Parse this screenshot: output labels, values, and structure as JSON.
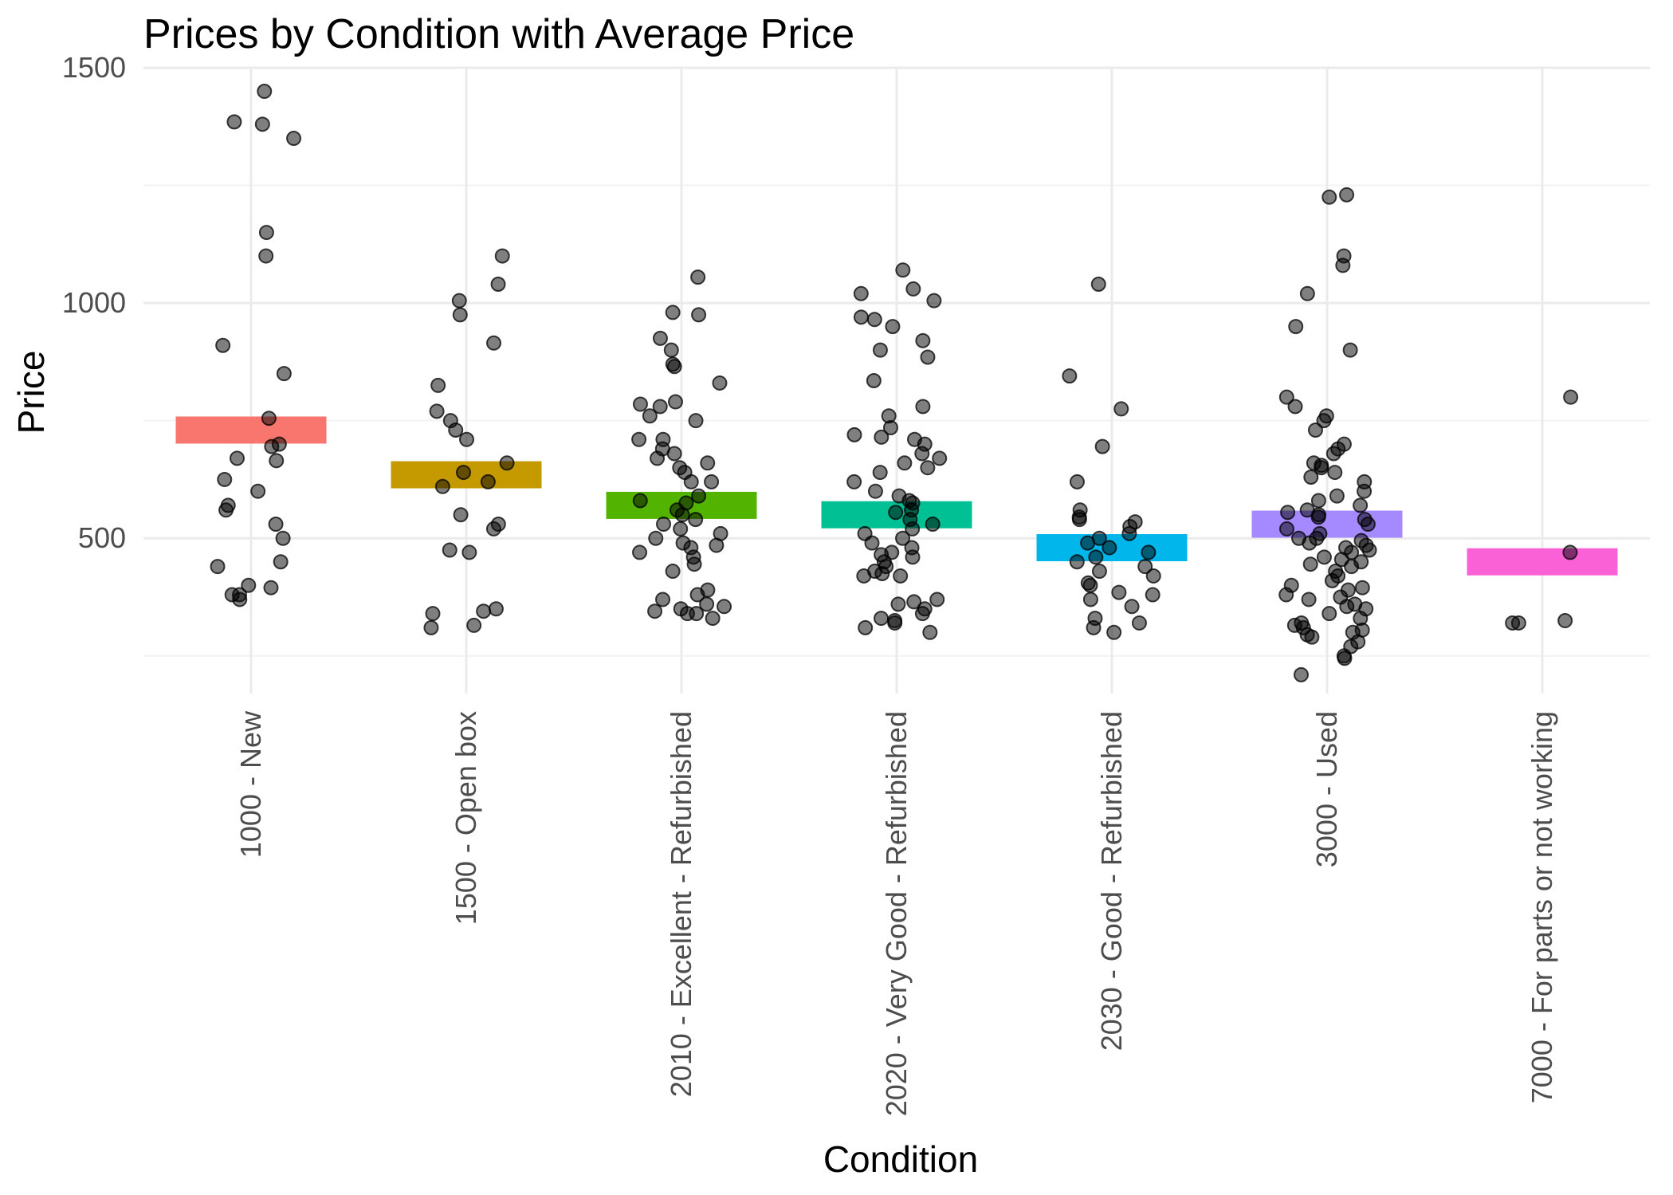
{
  "chart_data": {
    "type": "scatter",
    "title": "Prices by Condition with Average Price",
    "xlabel": "Condition",
    "ylabel": "Price",
    "ylim": [
      170,
      1500
    ],
    "y_ticks": [
      500,
      1000,
      1500
    ],
    "y_tick_labels": [
      "500",
      "1000",
      "1500"
    ],
    "grid": true,
    "legend": "none",
    "categories": [
      "1000 - New",
      "1500 - Open box",
      "2010 - Excellent - Refurbished",
      "2020 - Very Good - Refurbished",
      "2030 - Good - Refurbished",
      "3000 - Used",
      "7000 - For parts or not working"
    ],
    "colors": [
      "#F8766D",
      "#C49A00",
      "#53B400",
      "#00C094",
      "#00B6EB",
      "#A58AFF",
      "#FB61D7"
    ],
    "average_price": [
      730,
      635,
      570,
      550,
      480,
      530,
      450
    ],
    "points": [
      [
        1450,
        1385,
        1380,
        1350,
        1150,
        1100,
        910,
        850,
        755,
        700,
        695,
        670,
        665,
        625,
        600,
        570,
        560,
        530,
        500,
        450,
        440,
        400,
        395,
        380,
        380,
        370
      ],
      [
        1100,
        1040,
        1005,
        975,
        915,
        825,
        770,
        750,
        730,
        710,
        660,
        640,
        620,
        610,
        550,
        530,
        520,
        475,
        470,
        350,
        345,
        340,
        315,
        310
      ],
      [
        1055,
        980,
        975,
        925,
        900,
        870,
        865,
        830,
        790,
        785,
        780,
        760,
        750,
        710,
        710,
        690,
        680,
        670,
        660,
        650,
        640,
        620,
        620,
        590,
        580,
        575,
        560,
        550,
        540,
        530,
        520,
        510,
        500,
        490,
        485,
        480,
        470,
        460,
        445,
        430,
        390,
        380,
        370,
        360,
        355,
        350,
        345,
        340,
        340,
        330
      ],
      [
        1070,
        1030,
        1020,
        1005,
        970,
        965,
        950,
        920,
        900,
        885,
        835,
        780,
        760,
        735,
        720,
        715,
        710,
        700,
        680,
        670,
        660,
        650,
        640,
        620,
        600,
        590,
        580,
        575,
        560,
        555,
        540,
        530,
        520,
        510,
        500,
        490,
        480,
        470,
        465,
        460,
        450,
        440,
        430,
        425,
        420,
        420,
        370,
        365,
        360,
        350,
        340,
        330,
        325,
        320,
        310,
        300
      ],
      [
        1040,
        845,
        775,
        695,
        620,
        560,
        545,
        540,
        535,
        525,
        510,
        500,
        490,
        480,
        470,
        460,
        450,
        440,
        430,
        420,
        405,
        400,
        385,
        380,
        370,
        355,
        330,
        320,
        310,
        300
      ],
      [
        1230,
        1225,
        1100,
        1080,
        1020,
        950,
        900,
        800,
        780,
        760,
        750,
        730,
        700,
        690,
        680,
        660,
        655,
        650,
        640,
        630,
        620,
        600,
        590,
        580,
        570,
        560,
        555,
        550,
        545,
        540,
        530,
        520,
        510,
        500,
        500,
        495,
        490,
        485,
        480,
        475,
        470,
        460,
        455,
        450,
        445,
        440,
        430,
        420,
        410,
        400,
        395,
        390,
        380,
        375,
        370,
        360,
        355,
        350,
        340,
        330,
        320,
        315,
        310,
        305,
        300,
        295,
        290,
        280,
        270,
        250,
        245,
        210
      ],
      [
        800,
        470,
        325,
        320,
        320
      ]
    ]
  }
}
